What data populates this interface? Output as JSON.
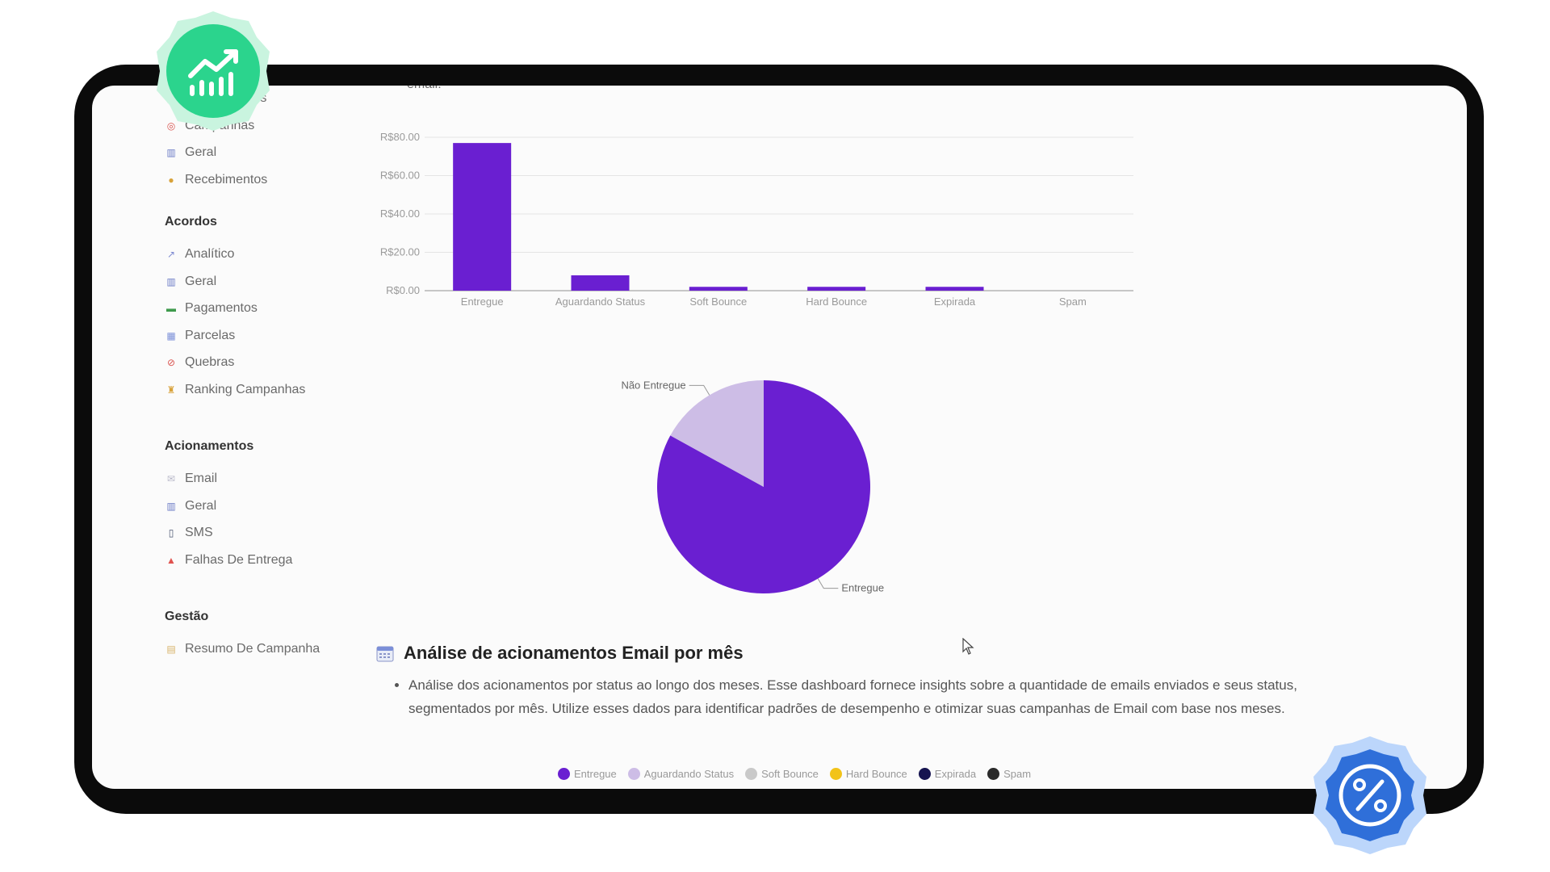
{
  "sidebar": {
    "top_items": [
      {
        "label": "Acionamentos",
        "icon": "table-icon"
      },
      {
        "label": "Campanhas",
        "icon": "target-icon"
      },
      {
        "label": "Geral",
        "icon": "bar-chart-icon"
      },
      {
        "label": "Recebimentos",
        "icon": "money-bag-icon"
      }
    ],
    "sections": [
      {
        "title": "Acordos",
        "items": [
          {
            "label": "Analítico",
            "icon": "line-chart-icon"
          },
          {
            "label": "Geral",
            "icon": "bar-chart-icon"
          },
          {
            "label": "Pagamentos",
            "icon": "cash-icon"
          },
          {
            "label": "Parcelas",
            "icon": "calendar-icon"
          },
          {
            "label": "Quebras",
            "icon": "prohibited-icon"
          },
          {
            "label": "Ranking Campanhas",
            "icon": "trophy-icon"
          }
        ]
      },
      {
        "title": "Acionamentos",
        "items": [
          {
            "label": "Email",
            "icon": "envelope-icon"
          },
          {
            "label": "Geral",
            "icon": "bar-chart-icon"
          },
          {
            "label": "SMS",
            "icon": "phone-icon"
          },
          {
            "label": "Falhas De Entrega",
            "icon": "alert-icon"
          }
        ]
      },
      {
        "title": "Gestão",
        "items": [
          {
            "label": "Resumo De Campanha",
            "icon": "scroll-icon"
          }
        ]
      }
    ]
  },
  "main": {
    "cut_text": "email:",
    "heading": "Análise de acionamentos Email por mês",
    "description": "Análise dos acionamentos por status ao longo dos meses. Esse dashboard fornece insights sobre a quantidade de emails enviados e seus status, segmentados por mês. Utilize esses dados para identificar padrões de desempenho e otimizar suas campanhas de Email com base nos meses."
  },
  "colors": {
    "accent": "#6a1fd1",
    "accent_light": "#cdbde6",
    "device_frame": "#0b0b0b",
    "badge_green": "#2bd48d",
    "badge_blue": "#2f6fd9"
  },
  "chart_data": [
    {
      "type": "bar",
      "categories": [
        "Entregue",
        "Aguardando Status",
        "Soft Bounce",
        "Hard Bounce",
        "Expirada",
        "Spam"
      ],
      "values": [
        77,
        8,
        2,
        2,
        2,
        0
      ],
      "ylim": [
        0,
        80
      ],
      "yticks": [
        0,
        20,
        40,
        60,
        80
      ],
      "ytick_labels": [
        "R$0.00",
        "R$20.00",
        "R$40.00",
        "R$60.00",
        "R$80.00"
      ],
      "grid": true,
      "color": "#6a1fd1"
    },
    {
      "type": "pie",
      "labels": [
        "Entregue",
        "Não Entregue"
      ],
      "values": [
        83,
        17
      ],
      "colors": [
        "#6a1fd1",
        "#cdbde6"
      ]
    }
  ],
  "legend": [
    {
      "label": "Entregue",
      "color": "#6a1fd1"
    },
    {
      "label": "Aguardando Status",
      "color": "#cdbde6"
    },
    {
      "label": "Soft Bounce",
      "color": "#c9c9c9"
    },
    {
      "label": "Hard Bounce",
      "color": "#f2c318"
    },
    {
      "label": "Expirada",
      "color": "#161450"
    },
    {
      "label": "Spam",
      "color": "#2b2b2b"
    }
  ]
}
